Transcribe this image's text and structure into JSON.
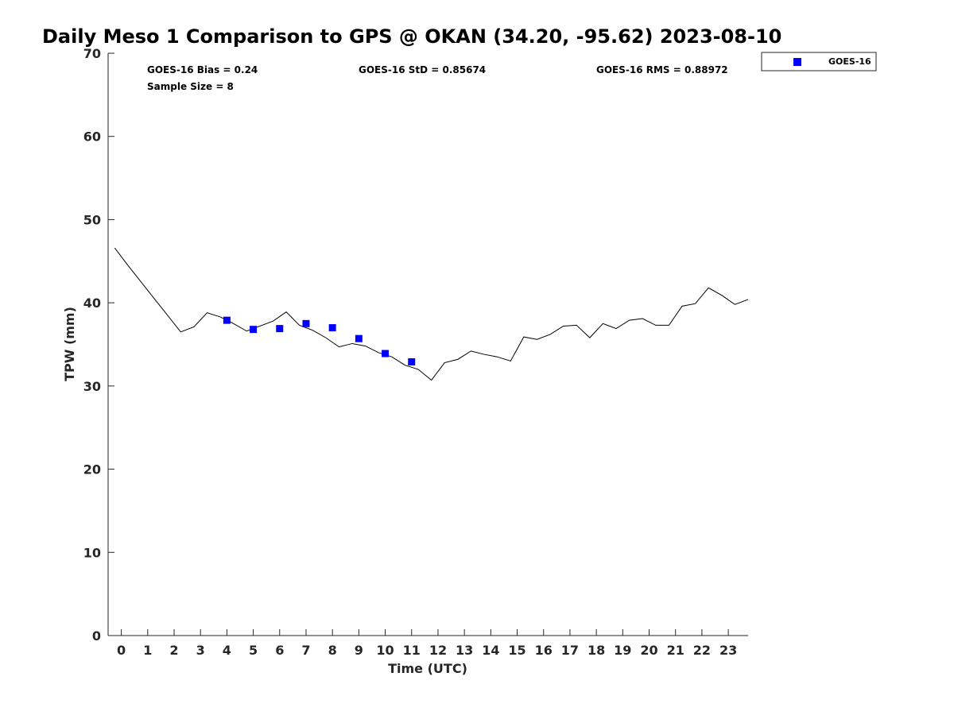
{
  "chart_data": {
    "type": "scatter",
    "title": "Daily Meso 1 Comparison to GPS @ OKAN (34.20, -95.62) 2023-08-10",
    "xlabel": "Time (UTC)",
    "ylabel": "TPW (mm)",
    "xlim": [
      -0.5,
      23.75
    ],
    "ylim": [
      0,
      70
    ],
    "x_ticks": [
      0,
      1,
      2,
      3,
      4,
      5,
      6,
      7,
      8,
      9,
      10,
      11,
      12,
      13,
      14,
      15,
      16,
      17,
      18,
      19,
      20,
      21,
      22,
      23
    ],
    "y_ticks": [
      0,
      10,
      20,
      30,
      40,
      50,
      60,
      70
    ],
    "grid": false,
    "legend_position": "outside top-right",
    "series": [
      {
        "kind": "line",
        "color": "#000000",
        "x": [
          -0.25,
          0.25,
          0.75,
          1.25,
          1.75,
          2.25,
          2.75,
          3.25,
          3.75,
          4.25,
          4.75,
          5.25,
          5.75,
          6.25,
          6.75,
          7.25,
          7.75,
          8.25,
          8.75,
          9.25,
          9.75,
          10.25,
          10.75,
          11.25,
          11.75,
          12.25,
          12.75,
          13.25,
          13.75,
          14.25,
          14.75,
          15.25,
          15.75,
          16.25,
          16.75,
          17.25,
          17.75,
          18.25,
          18.75,
          19.25,
          19.75,
          20.25,
          20.75,
          21.25,
          21.75,
          22.25,
          22.75,
          23.25,
          23.75
        ],
        "y": [
          46.6,
          44.5,
          42.5,
          40.5,
          38.5,
          36.5,
          37.1,
          38.8,
          38.3,
          37.5,
          36.6,
          37.2,
          37.8,
          38.9,
          37.3,
          36.7,
          35.8,
          34.7,
          35.1,
          34.8,
          34.0,
          33.5,
          32.5,
          32.0,
          30.7,
          32.8,
          33.2,
          34.2,
          33.8,
          33.5,
          33.0,
          35.9,
          35.6,
          36.2,
          37.2,
          37.3,
          35.8,
          37.5,
          36.9,
          37.9,
          38.1,
          37.3,
          37.3,
          39.6,
          39.9,
          41.8,
          40.9,
          39.8,
          40.4
        ]
      },
      {
        "name": "GOES-16",
        "kind": "scatter",
        "color": "#0000ff",
        "x": [
          4,
          5,
          6,
          7,
          8,
          9,
          10,
          11
        ],
        "y": [
          37.9,
          36.8,
          36.9,
          37.5,
          37.0,
          35.7,
          33.9,
          32.9
        ]
      }
    ],
    "annotations": {
      "bias": "GOES-16 Bias = 0.24",
      "std": "GOES-16 StD = 0.85674",
      "rms": "GOES-16 RMS = 0.88972",
      "sample": "Sample Size = 8"
    },
    "legend_label": "GOES-16"
  }
}
